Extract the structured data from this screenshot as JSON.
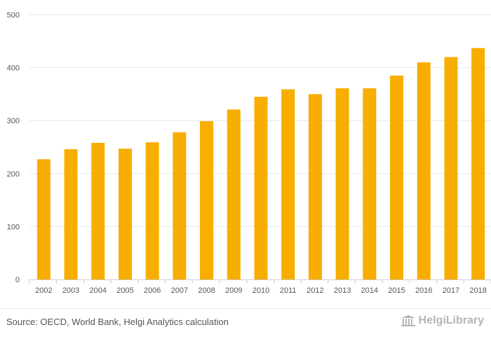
{
  "chart_data": {
    "type": "bar",
    "categories": [
      "2002",
      "2003",
      "2004",
      "2005",
      "2006",
      "2007",
      "2008",
      "2009",
      "2010",
      "2011",
      "2012",
      "2013",
      "2014",
      "2015",
      "2016",
      "2017",
      "2018"
    ],
    "values": [
      227,
      246,
      258,
      247,
      259,
      278,
      299,
      321,
      345,
      359,
      350,
      361,
      361,
      385,
      410,
      420,
      437
    ],
    "title": "",
    "xlabel": "",
    "ylabel": "",
    "ylim": [
      0,
      500
    ],
    "yticks": [
      0,
      100,
      200,
      300,
      400,
      500
    ],
    "grid": true,
    "bar_color": "#f7ae00"
  },
  "footer": {
    "source": "Source: OECD, World Bank, Helgi Analytics calculation",
    "brand": "HelgiLibrary"
  },
  "icons": {
    "brand_logo": "library-building-icon"
  }
}
